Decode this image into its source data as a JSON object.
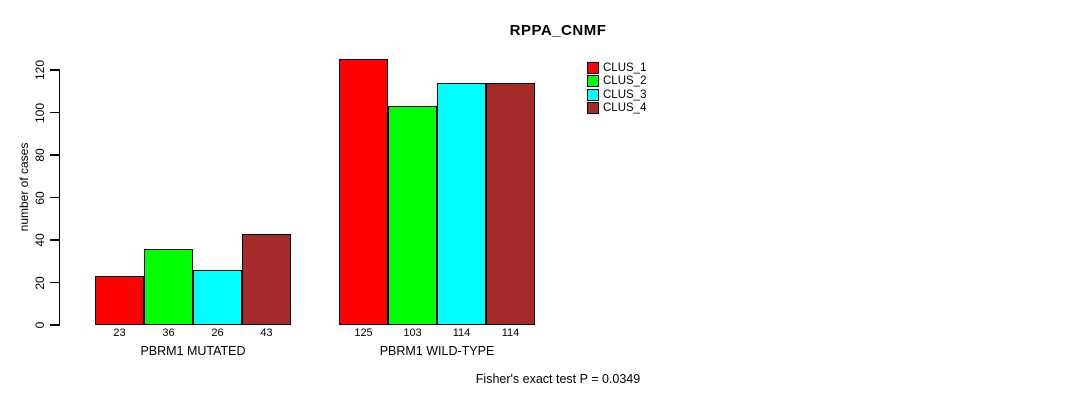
{
  "chart_data": {
    "type": "bar",
    "title": "RPPA_CNMF",
    "ylabel": "number of cases",
    "xlabel": "",
    "categories": [
      "PBRM1 MUTATED",
      "PBRM1 WILD-TYPE"
    ],
    "series": [
      {
        "name": "CLUS_1",
        "color": "#FF0000",
        "values": [
          23,
          125
        ]
      },
      {
        "name": "CLUS_2",
        "color": "#00FF00",
        "values": [
          36,
          103
        ]
      },
      {
        "name": "CLUS_3",
        "color": "#00FFFF",
        "values": [
          26,
          114
        ]
      },
      {
        "name": "CLUS_4",
        "color": "#A52A2A",
        "values": [
          43,
          114
        ]
      }
    ],
    "yticks": [
      0,
      20,
      40,
      60,
      80,
      100,
      120
    ],
    "ylim": [
      0,
      120
    ],
    "bar_value_labels": true,
    "grid": false,
    "legend_position": "right",
    "annotation": "Fisher's exact test P = 0.0349"
  }
}
